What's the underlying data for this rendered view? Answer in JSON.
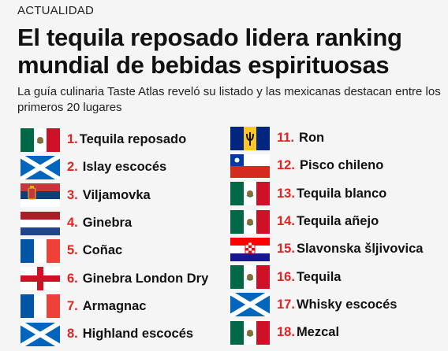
{
  "header": {
    "kicker": "ACTUALIDAD",
    "title": "El tequila reposado lidera ranking mundial de bebidas espirituosas",
    "subtitle": "La guía culinaria Taste Atlas reveló su listado y las mexicanas destacan entre los primeros 20 lugares"
  },
  "ranking": [
    {
      "num": "1.",
      "name": "Tequila reposado",
      "flag": "mexico-flag-icon"
    },
    {
      "num": "2.",
      "name": "Islay escocés",
      "flag": "scotland-flag-icon"
    },
    {
      "num": "3.",
      "name": "Viljamovka",
      "flag": "serbia-flag-icon"
    },
    {
      "num": "4.",
      "name": "Ginebra",
      "flag": "netherlands-flag-icon"
    },
    {
      "num": "5.",
      "name": "Coñac",
      "flag": "france-flag-icon"
    },
    {
      "num": "6.",
      "name": "Ginebra London Dry",
      "flag": "england-flag-icon"
    },
    {
      "num": "7.",
      "name": "Armagnac",
      "flag": "france-flag-icon"
    },
    {
      "num": "8.",
      "name": "Highland escocés",
      "flag": "scotland-flag-icon"
    },
    {
      "num": "11.",
      "name": "Ron",
      "flag": "barbados-flag-icon"
    },
    {
      "num": "12.",
      "name": "Pisco chileno",
      "flag": "chile-flag-icon"
    },
    {
      "num": "13.",
      "name": "Tequila blanco",
      "flag": "mexico-flag-icon"
    },
    {
      "num": "14.",
      "name": "Tequila añejo",
      "flag": "mexico-flag-icon"
    },
    {
      "num": "15.",
      "name": "Slavonska šljivovica",
      "flag": "croatia-flag-icon"
    },
    {
      "num": "16.",
      "name": "Tequila",
      "flag": "mexico-flag-icon"
    },
    {
      "num": "17.",
      "name": "Whisky escocés",
      "flag": "scotland-flag-icon"
    },
    {
      "num": "18.",
      "name": "Mezcal",
      "flag": "mexico-flag-icon"
    }
  ],
  "colors": {
    "accent_number": "#e3231f",
    "background": "#f5f5f5"
  }
}
